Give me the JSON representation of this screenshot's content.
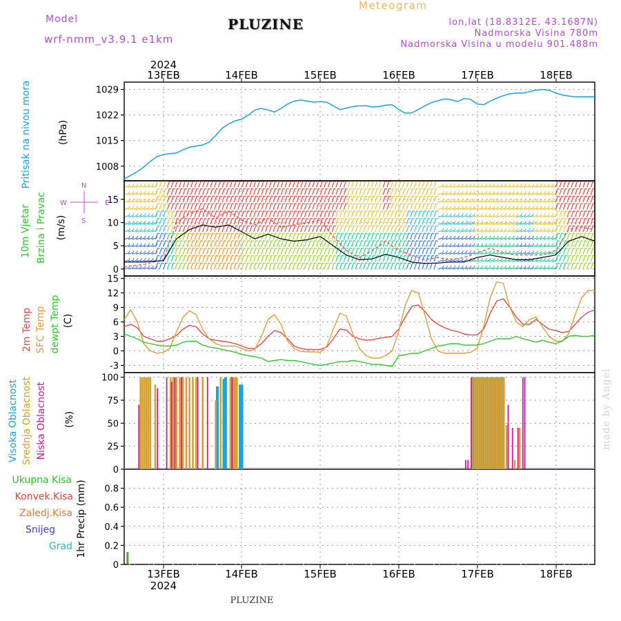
{
  "header": {
    "model_label": "Model",
    "model_name": "wrf-nmm_v3.9.1 e1km",
    "meteogram_title": "Meteogram",
    "location": "PLUZINE",
    "lonlat": "lon,lat (18.8312E, 43.1687N)",
    "elevation": "Nadmorska Visina 780m",
    "elevation_model": "Nadmorska Visina u modelu 901.488m",
    "footer": "PLUZINE",
    "watermark": "made by Angel"
  },
  "colors": {
    "pressure": "#1aa0e8",
    "wind_speed": "#000000",
    "wind_gust": "#ff4040",
    "temp_2m": "#e84848",
    "sfc_temp": "#d8a040",
    "dewpoint": "#30c830",
    "cloud_high": "#20a0e0",
    "cloud_mid": "#d8a030",
    "cloud_low": "#d01890",
    "rain_total": "#30c030",
    "rain_conv": "#e84040",
    "rain_freezing": "#f07830",
    "snow": "#4040e0",
    "hail": "#20c0c0"
  },
  "chart_data": [
    {
      "type": "line",
      "panel": "pressure",
      "ylabel_lines": [
        "Pritisak na nivou mora",
        "(hPa)"
      ],
      "x_axis": {
        "range": [
          "2024-02-12 14:00",
          "2024-02-18 14:00"
        ],
        "top_labels": [
          "13FEB",
          "14FEB",
          "15FEB",
          "16FEB",
          "17FEB",
          "18FEB"
        ],
        "top_year": "2024",
        "bottom_labels": [
          "13FEB",
          "14FEB",
          "15FEB",
          "16FEB",
          "17FEB",
          "18FEB"
        ],
        "bottom_year": "2024"
      },
      "ylim": [
        1004,
        1031
      ],
      "yticks": [
        1008,
        1015,
        1022,
        1029
      ],
      "grid": true,
      "series": [
        {
          "x_hours": [
            0,
            2,
            4,
            6,
            8,
            10,
            12,
            14,
            16,
            18,
            20,
            22,
            24,
            26,
            28,
            30,
            32,
            34,
            36,
            38,
            40,
            42,
            44,
            46,
            48,
            50,
            52,
            54,
            56,
            58,
            60,
            62,
            64,
            66,
            68,
            70,
            72,
            74,
            76,
            78,
            80,
            82,
            84,
            86,
            88,
            90,
            92,
            94,
            96,
            98,
            100,
            102,
            104,
            106,
            108,
            110,
            112,
            114,
            116,
            118,
            120,
            122,
            124,
            126,
            128,
            130,
            132,
            134,
            136,
            138,
            140,
            142,
            144
          ],
          "values": [
            1004.5,
            1005.5,
            1006.5,
            1007.8,
            1009.3,
            1010.6,
            1011.2,
            1011.4,
            1011.6,
            1012.5,
            1013.2,
            1013.5,
            1013.8,
            1014.6,
            1016.4,
            1018.4,
            1019.6,
            1020.4,
            1020.9,
            1022.0,
            1023.4,
            1023.8,
            1023.4,
            1022.8,
            1023.8,
            1025.0,
            1025.8,
            1026.1,
            1025.8,
            1025.5,
            1025.7,
            1025.5,
            1024.5,
            1023.5,
            1023.9,
            1024.3,
            1024.5,
            1024.5,
            1024.2,
            1024.3,
            1024.7,
            1024.8,
            1023.5,
            1022.5,
            1022.6,
            1023.5,
            1024.5,
            1025.4,
            1025.9,
            1026.4,
            1026.2,
            1025.7,
            1026.5,
            1026.3,
            1025.0,
            1024.8,
            1025.8,
            1026.6,
            1027.3,
            1027.8,
            1028.0,
            1028.0,
            1028.4,
            1028.8,
            1029.0,
            1028.8,
            1028.0,
            1027.5,
            1027.2,
            1027.0,
            1027.0,
            1027.0,
            1027.0
          ]
        }
      ]
    },
    {
      "type": "line",
      "panel": "wind",
      "ylabel_lines": [
        "10m Vjetar",
        "Brzina i Pravac",
        "(m/s)"
      ],
      "compass": {
        "n": "N",
        "w": "W",
        "e": "E",
        "s": "S"
      },
      "ylim": [
        -1.5,
        19
      ],
      "yticks": [
        0,
        5,
        10,
        15
      ],
      "grid": true,
      "series": [
        {
          "name": "speed",
          "x_hours": [
            0,
            6,
            12,
            16,
            20,
            24,
            28,
            32,
            36,
            40,
            44,
            48,
            52,
            56,
            60,
            64,
            68,
            72,
            76,
            80,
            84,
            88,
            92,
            96,
            100,
            104,
            108,
            112,
            116,
            120,
            124,
            128,
            132,
            136,
            140,
            144
          ],
          "values": [
            1.5,
            1.5,
            1.8,
            6.5,
            8.5,
            9.5,
            9.0,
            9.5,
            8.0,
            6.5,
            7.5,
            6.5,
            6.0,
            6.3,
            7.0,
            5.0,
            3.0,
            2.0,
            2.2,
            3.2,
            2.5,
            1.5,
            1.2,
            1.3,
            1.5,
            1.5,
            2.5,
            3.0,
            2.5,
            2.0,
            2.0,
            2.5,
            3.0,
            6.0,
            7.0,
            6.0
          ]
        },
        {
          "name": "gust",
          "x_hours": [
            0,
            6,
            12,
            16,
            20,
            24,
            28,
            32,
            36,
            40,
            44,
            48,
            52,
            56,
            60,
            64,
            68,
            72,
            76,
            80,
            84,
            88,
            92,
            96,
            100,
            104,
            108,
            112,
            116,
            120,
            124,
            128,
            132,
            136,
            140,
            144
          ],
          "values": [
            0.5,
            1.0,
            2.0,
            10.0,
            12.0,
            13.0,
            11.0,
            12.5,
            10.5,
            9.5,
            11.0,
            9.0,
            9.5,
            10.0,
            10.5,
            7.0,
            4.0,
            2.5,
            4.0,
            6.0,
            4.0,
            3.0,
            2.0,
            2.5,
            2.0,
            2.5,
            3.5,
            4.5,
            3.5,
            3.0,
            3.0,
            3.0,
            4.0,
            8.5,
            9.0,
            8.5
          ]
        }
      ]
    },
    {
      "type": "line",
      "panel": "temperature",
      "ylabel_groups": [
        "2m Temp",
        "SFC Temp",
        "dewpt Temp",
        "(C)"
      ],
      "ylim": [
        -4.5,
        15.5
      ],
      "yticks": [
        -3,
        0,
        3,
        6,
        9,
        12,
        15
      ],
      "grid": true,
      "series": [
        {
          "name": "2m Temp",
          "x_hours": [
            0,
            2,
            4,
            6,
            8,
            10,
            12,
            14,
            16,
            18,
            20,
            22,
            24,
            26,
            28,
            30,
            32,
            34,
            36,
            38,
            40,
            42,
            44,
            46,
            48,
            50,
            52,
            54,
            56,
            58,
            60,
            62,
            64,
            66,
            68,
            70,
            72,
            74,
            76,
            78,
            80,
            82,
            84,
            86,
            88,
            90,
            92,
            94,
            96,
            98,
            100,
            102,
            104,
            106,
            108,
            110,
            112,
            114,
            116,
            118,
            120,
            122,
            124,
            126,
            128,
            130,
            132,
            134,
            136,
            138,
            140,
            142,
            144
          ],
          "values": [
            5.0,
            5.5,
            4.8,
            3.0,
            2.5,
            2.0,
            2.0,
            2.5,
            3.2,
            4.5,
            5.3,
            5.0,
            3.5,
            2.5,
            2.2,
            2.0,
            1.8,
            1.5,
            1.0,
            0.5,
            0.5,
            1.5,
            3.0,
            4.2,
            3.8,
            2.5,
            1.0,
            0.5,
            0.3,
            0.3,
            0.3,
            0.8,
            2.5,
            4.5,
            4.3,
            3.0,
            2.5,
            2.2,
            2.3,
            2.6,
            2.8,
            3.0,
            4.5,
            7.0,
            9.2,
            9.5,
            8.2,
            6.5,
            5.5,
            4.8,
            4.3,
            4.0,
            3.5,
            3.3,
            3.3,
            4.5,
            7.8,
            10.3,
            10.8,
            9.0,
            7.0,
            5.5,
            5.5,
            6.5,
            5.5,
            4.5,
            4.2,
            3.8,
            4.0,
            5.5,
            7.0,
            8.0,
            8.5
          ]
        },
        {
          "name": "SFC Temp",
          "x_hours": [
            0,
            2,
            4,
            6,
            8,
            10,
            12,
            14,
            16,
            18,
            20,
            22,
            24,
            26,
            28,
            30,
            32,
            34,
            36,
            38,
            40,
            42,
            44,
            46,
            48,
            50,
            52,
            54,
            56,
            58,
            60,
            62,
            64,
            66,
            68,
            70,
            72,
            74,
            76,
            78,
            80,
            82,
            84,
            86,
            88,
            90,
            92,
            94,
            96,
            98,
            100,
            102,
            104,
            106,
            108,
            110,
            112,
            114,
            116,
            118,
            120,
            122,
            124,
            126,
            128,
            130,
            132,
            134,
            136,
            138,
            140,
            142,
            144
          ],
          "values": [
            6.5,
            8.5,
            6.0,
            1.5,
            0.0,
            -0.5,
            -0.3,
            0.5,
            4.0,
            7.0,
            8.3,
            7.5,
            4.5,
            2.5,
            1.5,
            1.0,
            1.0,
            1.0,
            0.5,
            0.0,
            0.3,
            3.0,
            6.5,
            7.5,
            5.5,
            2.0,
            0.5,
            -0.1,
            -0.2,
            -0.2,
            -0.3,
            1.0,
            4.5,
            7.8,
            7.2,
            3.5,
            0.5,
            -1.0,
            -1.5,
            -1.5,
            -1.0,
            0.0,
            4.0,
            9.5,
            12.5,
            12.0,
            7.5,
            2.5,
            0.0,
            -0.5,
            -0.5,
            -0.5,
            -0.5,
            -0.3,
            0.5,
            5.0,
            11.0,
            14.3,
            14.0,
            9.0,
            6.0,
            5.0,
            6.5,
            7.0,
            5.0,
            3.0,
            2.0,
            2.0,
            3.5,
            7.5,
            11.0,
            12.5,
            12.5
          ]
        },
        {
          "name": "dewpt Temp",
          "x_hours": [
            0,
            2,
            4,
            6,
            8,
            10,
            12,
            14,
            16,
            18,
            20,
            22,
            24,
            26,
            28,
            30,
            32,
            34,
            36,
            38,
            40,
            42,
            44,
            46,
            48,
            50,
            52,
            54,
            56,
            58,
            60,
            62,
            64,
            66,
            68,
            70,
            72,
            74,
            76,
            78,
            80,
            82,
            84,
            86,
            88,
            90,
            92,
            94,
            96,
            98,
            100,
            102,
            104,
            106,
            108,
            110,
            112,
            114,
            116,
            118,
            120,
            122,
            124,
            126,
            128,
            130,
            132,
            134,
            136,
            138,
            140,
            142,
            144
          ],
          "values": [
            3.5,
            3.0,
            2.5,
            1.8,
            1.5,
            1.2,
            1.0,
            1.0,
            1.2,
            1.8,
            2.0,
            2.0,
            1.2,
            0.8,
            0.6,
            0.3,
            0.0,
            -0.3,
            -0.7,
            -1.0,
            -1.2,
            -1.5,
            -2.2,
            -2.0,
            -1.8,
            -2.0,
            -2.0,
            -2.2,
            -2.5,
            -2.8,
            -3.0,
            -2.8,
            -2.5,
            -2.2,
            -2.2,
            -2.0,
            -2.2,
            -2.5,
            -2.8,
            -2.8,
            -3.0,
            -3.2,
            -1.0,
            -0.8,
            -0.5,
            -0.5,
            0.0,
            0.5,
            1.0,
            1.2,
            1.5,
            1.5,
            1.2,
            1.2,
            1.2,
            1.5,
            2.0,
            2.5,
            2.5,
            2.5,
            3.0,
            2.5,
            2.2,
            1.8,
            2.2,
            1.8,
            1.5,
            2.0,
            3.0,
            3.2,
            3.0,
            3.0,
            3.2
          ]
        }
      ]
    },
    {
      "type": "bar",
      "panel": "cloud",
      "ylabel_groups": [
        "Visoka Oblacnost",
        "Srednja Oblacnost",
        "Niska Oblacnost",
        "(%)"
      ],
      "ylim": [
        0,
        105
      ],
      "yticks": [
        0,
        25,
        50,
        75,
        100
      ],
      "grid": true,
      "series": [
        {
          "name": "Visoka Oblacnost",
          "x_hours": [
            28.5,
            30.5,
            31.0,
            35.5,
            36.0,
            107,
            107.5,
            108,
            108.5,
            109,
            109.5,
            110,
            110.5,
            111,
            111.5,
            112,
            112.5,
            113,
            113.5,
            114,
            114.5,
            115,
            115.5,
            116
          ],
          "values": [
            90,
            98,
            100,
            92,
            92,
            100,
            100,
            100,
            100,
            100,
            100,
            100,
            100,
            100,
            100,
            100,
            100,
            100,
            100,
            100,
            100,
            100,
            100,
            100
          ]
        },
        {
          "name": "Srednja Oblacnost",
          "x_hours": [
            5.0,
            5.6,
            6.2,
            6.8,
            7.4,
            8.0,
            9.5,
            14.2,
            15.0,
            16.0,
            17.0,
            18.0,
            19.0,
            20.0,
            21.0,
            22.0,
            24.0,
            28.0,
            29.5,
            32.5,
            33.0,
            33.5,
            34.0,
            34.5,
            106.5,
            107.2,
            107.8,
            108.4,
            109.0,
            109.6,
            110.2,
            110.8,
            111.4,
            112.0,
            112.6,
            113.2,
            113.8,
            114.4,
            115.0,
            115.6,
            116.2,
            117.0,
            119.5,
            121.0
          ],
          "values": [
            100,
            100,
            100,
            100,
            100,
            100,
            92,
            100,
            100,
            100,
            100,
            100,
            100,
            100,
            100,
            100,
            100,
            75,
            100,
            100,
            100,
            100,
            100,
            100,
            100,
            100,
            100,
            100,
            100,
            100,
            100,
            100,
            100,
            100,
            100,
            100,
            100,
            100,
            100,
            100,
            100,
            48,
            10,
            45
          ]
        },
        {
          "name": "Niska Oblacnost",
          "x_hours": [
            4.5,
            10.2,
            13.0,
            14.5,
            15.5,
            17.5,
            22.5,
            25.5,
            33.0,
            104.5,
            105.2,
            106.2,
            117.5,
            118.8,
            120.5,
            122.0,
            122.6
          ],
          "values": [
            70,
            88,
            100,
            95,
            100,
            100,
            100,
            100,
            100,
            10,
            10,
            100,
            70,
            45,
            45,
            100,
            100
          ]
        }
      ]
    },
    {
      "type": "bar",
      "panel": "precipitation",
      "ylabel_lines": [
        "1hr Precip (mm)"
      ],
      "legend": [
        "Ukupna Kisa",
        "Konvek.Kisa",
        "Zaledj.Kisa",
        "Snijeg",
        "Grad"
      ],
      "ylim": [
        0,
        1.0
      ],
      "yticks": [
        0,
        0.2,
        0.4,
        0.6,
        0.8
      ],
      "grid": true,
      "series": [
        {
          "name": "Ukupna Kisa",
          "x_hours": [
            0.5
          ],
          "values": [
            0.13
          ]
        }
      ]
    }
  ]
}
